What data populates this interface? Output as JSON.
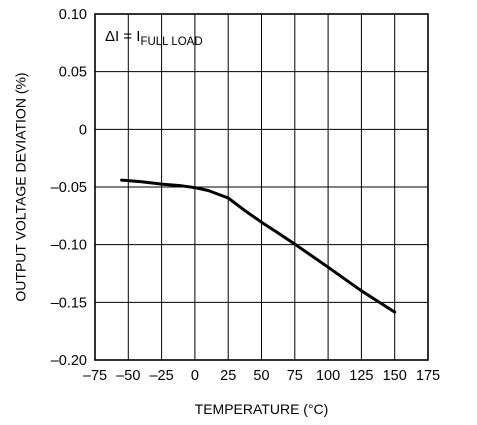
{
  "chart_data": {
    "type": "line",
    "title": "",
    "xlabel": "TEMPERATURE (°C)",
    "ylabel": "OUTPUT VOLTAGE DEVIATION (%)",
    "xlim": [
      -75,
      175
    ],
    "ylim": [
      -0.2,
      0.1
    ],
    "x_ticks": [
      -75,
      -50,
      -25,
      0,
      25,
      50,
      75,
      100,
      125,
      150,
      175
    ],
    "x_tick_labels": [
      "–75",
      "–50",
      "–25",
      "0",
      "25",
      "50",
      "75",
      "100",
      "125",
      "150",
      "175"
    ],
    "y_ticks": [
      0.1,
      0.05,
      0,
      -0.05,
      -0.1,
      -0.15,
      -0.2
    ],
    "y_tick_labels": [
      "0.10",
      "0.05",
      "0",
      "–0.05",
      "–0.10",
      "–0.15",
      "–0.20"
    ],
    "grid": true,
    "annotation": {
      "main": "ΔI = I",
      "subscript": "FULL LOAD"
    },
    "series": [
      {
        "x": [
          -55,
          -40,
          -25,
          -10,
          0,
          10,
          25,
          37,
          50,
          62,
          75,
          100,
          125,
          150
        ],
        "y": [
          -0.044,
          -0.0455,
          -0.0475,
          -0.049,
          -0.0505,
          -0.053,
          -0.0595,
          -0.07,
          -0.0805,
          -0.0895,
          -0.0995,
          -0.1195,
          -0.14,
          -0.1585
        ]
      }
    ],
    "line_color": "#000000"
  }
}
